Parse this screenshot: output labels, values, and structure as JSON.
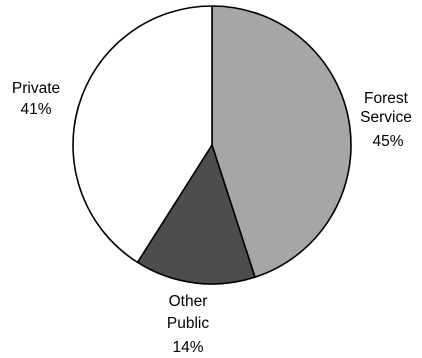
{
  "chart_data": {
    "type": "pie",
    "title": "",
    "legend": "none",
    "slices": [
      {
        "name": "Forest Service",
        "label_lines": [
          "Forest",
          "Service"
        ],
        "percent_label": "45%",
        "value": 45,
        "color": "#a6a6a6"
      },
      {
        "name": "Other Public",
        "label_lines": [
          "Other",
          "Public"
        ],
        "percent_label": "14%",
        "value": 14,
        "color": "#4d4d4d"
      },
      {
        "name": "Private",
        "label_lines": [
          "Private"
        ],
        "percent_label": "41%",
        "value": 41,
        "color": "#ffffff"
      }
    ],
    "start_angle": "12 o'clock",
    "direction": "clockwise",
    "outline_color": "#000000"
  }
}
